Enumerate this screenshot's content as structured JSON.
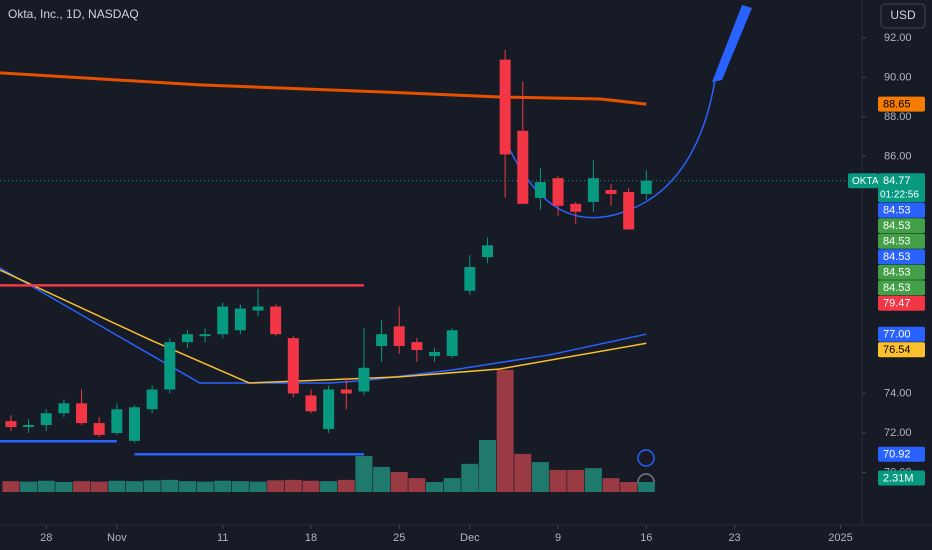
{
  "chart_data": {
    "type": "candlestick",
    "title": "Okta, Inc., 1D, NASDAQ",
    "currency": "USD",
    "symbol": "OKTA",
    "countdown": "01:22:56",
    "last": 84.77,
    "open": [
      72.6,
      72.3,
      72.4,
      73.0,
      73.5,
      72.5,
      72.0,
      71.6,
      73.2,
      74.2,
      76.6,
      76.9,
      77.0,
      77.2,
      78.2,
      78.4,
      76.8,
      73.9,
      72.2,
      74.2,
      74.1,
      76.4,
      77.4,
      76.6,
      75.9,
      75.9,
      79.2,
      80.9,
      90.9,
      87.3,
      83.9,
      84.9,
      83.6,
      83.7,
      84.3,
      84.2,
      84.1
    ],
    "high": [
      72.9,
      72.7,
      73.2,
      73.7,
      74.2,
      72.8,
      73.5,
      73.4,
      74.4,
      76.8,
      77.2,
      77.3,
      78.6,
      78.5,
      79.3,
      78.5,
      76.9,
      74.2,
      74.4,
      74.8,
      77.3,
      77.7,
      78.4,
      76.8,
      76.3,
      77.3,
      81.0,
      81.9,
      91.4,
      89.8,
      85.4,
      85.0,
      83.7,
      85.8,
      84.6,
      84.4,
      85.3
    ],
    "low": [
      72.1,
      72.0,
      72.1,
      72.8,
      72.4,
      71.8,
      71.9,
      71.5,
      73.0,
      74.0,
      76.3,
      76.6,
      76.8,
      77.0,
      77.9,
      76.9,
      73.8,
      73.0,
      72.0,
      73.2,
      73.9,
      75.6,
      76.0,
      75.6,
      75.6,
      75.8,
      79.0,
      80.6,
      83.9,
      83.6,
      83.3,
      83.0,
      82.6,
      83.2,
      83.5,
      82.3,
      83.8
    ],
    "close": [
      72.3,
      72.4,
      73.0,
      73.5,
      72.5,
      71.9,
      73.2,
      73.3,
      74.2,
      76.6,
      77.0,
      77.0,
      78.4,
      78.3,
      78.4,
      77.0,
      74.0,
      73.1,
      74.2,
      74.0,
      75.3,
      77.0,
      76.4,
      76.2,
      76.1,
      77.2,
      80.4,
      81.5,
      86.1,
      83.6,
      84.7,
      83.5,
      83.2,
      84.9,
      84.1,
      82.3,
      84.77
    ],
    "volume": [
      2.5,
      2.4,
      2.6,
      2.3,
      2.5,
      2.4,
      2.6,
      2.5,
      2.7,
      2.8,
      2.5,
      2.4,
      2.6,
      2.5,
      2.4,
      2.7,
      2.8,
      2.6,
      2.5,
      2.8,
      8.3,
      5.8,
      4.6,
      3.2,
      2.3,
      3.2,
      6.5,
      12.0,
      28.2,
      8.8,
      6.9,
      5.1,
      5.1,
      5.5,
      3.2,
      2.3,
      2.31
    ],
    "volume_label": "2.31M",
    "vlim": [
      0,
      30
    ],
    "ylim": [
      67.34,
      93.92
    ],
    "yticks": [
      {
        "value": 92,
        "label": "92.00"
      },
      {
        "value": 90,
        "label": "90.00"
      },
      {
        "value": 88,
        "label": "88.00"
      },
      {
        "value": 86,
        "label": "86.00"
      },
      {
        "value": 74,
        "label": "74.00"
      },
      {
        "value": 72,
        "label": "72.00"
      },
      {
        "value": 70,
        "label": "70.00"
      }
    ],
    "xlim": [
      -0.62,
      48.22
    ],
    "xticks": [
      {
        "value": 2,
        "label": "28"
      },
      {
        "value": 6,
        "label": "Nov"
      },
      {
        "value": 12,
        "label": "11"
      },
      {
        "value": 17,
        "label": "18"
      },
      {
        "value": 22,
        "label": "25"
      },
      {
        "value": 26,
        "label": "Dec"
      },
      {
        "value": 31,
        "label": "9"
      },
      {
        "value": 36,
        "label": "16"
      },
      {
        "value": 41,
        "label": "23"
      },
      {
        "value": 47,
        "label": "2025"
      }
    ],
    "overlays": [
      {
        "color": "#e65100",
        "x": [
          -0.62,
          10.7,
          20.9,
          27.7,
          33.4,
          36
        ],
        "values": [
          90.23,
          89.62,
          89.27,
          89.01,
          88.91,
          88.65
        ]
      },
      {
        "color": "#2962ff",
        "x": [
          -0.62,
          10.7,
          18.1,
          20.1,
          25,
          30.5,
          36
        ],
        "values": [
          80.35,
          74.53,
          74.53,
          74.66,
          75.19,
          75.95,
          77.0
        ]
      },
      {
        "color": "#fbc02d",
        "x": [
          -0.62,
          7.9,
          13.5,
          22,
          27.7,
          36
        ],
        "values": [
          80.25,
          76.71,
          74.53,
          74.84,
          75.24,
          76.54
        ]
      }
    ],
    "levels": [
      {
        "color": "#f23645",
        "x": [
          -0.62,
          20
        ],
        "value": 79.47
      },
      {
        "color": "#2962ff",
        "x": [
          7,
          20
        ],
        "value": 70.92
      },
      {
        "color": "#2962ff",
        "x": [
          -0.62,
          6
        ],
        "value": 71.58
      }
    ],
    "price_tags": [
      {
        "value": 84.53,
        "label": "84.53",
        "color": "#2962ff"
      },
      {
        "value": 84.53,
        "label": "84.53",
        "color": "#43a047"
      },
      {
        "value": 84.53,
        "label": "84.53",
        "color": "#43a047"
      },
      {
        "value": 84.53,
        "label": "84.53",
        "color": "#2962ff"
      },
      {
        "value": 84.53,
        "label": "84.53",
        "color": "#43a047"
      },
      {
        "value": 84.53,
        "label": "84.53",
        "color": "#43a047"
      },
      {
        "value": 79.47,
        "label": "79.47",
        "color": "#f23645"
      },
      {
        "value": 77.0,
        "label": "77.00",
        "color": "#2962ff"
      },
      {
        "value": 76.54,
        "label": "76.54",
        "color": "#fbc02d"
      },
      {
        "value": 70.92,
        "label": "70.92",
        "color": "#2962ff"
      }
    ],
    "orange_tag": {
      "value": 88.65,
      "label": "88.65",
      "color": "#f57c00"
    },
    "up_color": "#089981",
    "down_color": "#f23645",
    "vol_up_color": "#1f7a6d",
    "vol_down_color": "#9a3a43"
  }
}
